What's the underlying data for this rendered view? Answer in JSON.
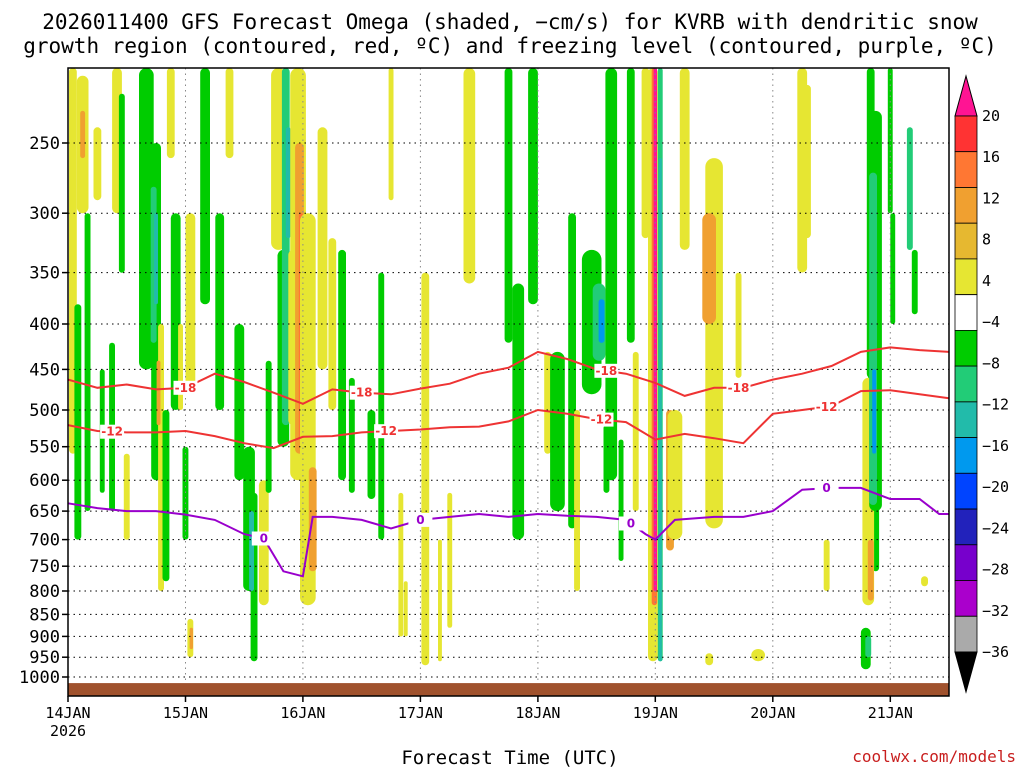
{
  "title_lines": [
    "2026011400 GFS Forecast Omega (shaded, −cm/s) for KVRB with dendritic snow",
    "growth region (contoured, red, ºC) and freezing level (contoured, purple, ºC)"
  ],
  "credit": "coolwx.com/models",
  "colors": {
    "sigma_red": "#ee3333",
    "freezing_purple": "#9900cc",
    "ground": "#a0522d"
  },
  "chart_data": {
    "type": "heatmap",
    "xlabel": "Forecast Time (UTC)",
    "x_ticks": [
      {
        "label": "14JAN",
        "sublabel": "2026",
        "hours": 0
      },
      {
        "label": "15JAN",
        "hours": 24
      },
      {
        "label": "16JAN",
        "hours": 48
      },
      {
        "label": "17JAN",
        "hours": 72
      },
      {
        "label": "18JAN",
        "hours": 96
      },
      {
        "label": "19JAN",
        "hours": 120
      },
      {
        "label": "20JAN",
        "hours": 144
      },
      {
        "label": "21JAN",
        "hours": 168
      }
    ],
    "xlim_hours": [
      0,
      180
    ],
    "y_ticks": [
      "250",
      "300",
      "350",
      "400",
      "450",
      "500",
      "550",
      "600",
      "650",
      "700",
      "750",
      "800",
      "850",
      "900",
      "950",
      "1000"
    ],
    "y_tick_values": [
      250,
      300,
      350,
      400,
      450,
      500,
      550,
      600,
      650,
      700,
      750,
      800,
      850,
      900,
      950,
      1000
    ],
    "ylim_hpa": [
      200,
      1025
    ],
    "y_scale": "log-pressure (reversed)",
    "grid": "dotted",
    "colorbar": {
      "labels": [
        "20",
        "16",
        "12",
        "8",
        "4",
        "−4",
        "−8",
        "−12",
        "−16",
        "−20",
        "−24",
        "−28",
        "−32",
        "−36"
      ],
      "colors": [
        "#ff1493",
        "#ff3333",
        "#ff7733",
        "#f0a030",
        "#e6b830",
        "#e6e632",
        "#ffffff",
        "#00cc00",
        "#22cc77",
        "#22bbaa",
        "#0099ee",
        "#0044ff",
        "#2222bb",
        "#7700cc",
        "#aa00cc",
        "#aaaaaa",
        "#000000"
      ]
    },
    "series": [
      {
        "name": "-18",
        "color": "#ee3333",
        "label_hours": [
          24,
          60,
          110,
          137
        ],
        "hours": [
          0,
          6,
          12,
          18,
          24,
          30,
          36,
          42,
          48,
          54,
          60,
          66,
          72,
          78,
          84,
          90,
          96,
          102,
          108,
          114,
          120,
          126,
          132,
          138,
          144,
          150,
          156,
          162,
          168,
          174,
          180
        ],
        "hpa": [
          462,
          472,
          468,
          474,
          472,
          455,
          465,
          478,
          492,
          474,
          478,
          480,
          473,
          467,
          455,
          448,
          430,
          438,
          450,
          455,
          466,
          482,
          472,
          472,
          462,
          455,
          446,
          430,
          425,
          428,
          430
        ]
      },
      {
        "name": "-12",
        "color": "#ee3333",
        "label_hours": [
          9,
          65,
          109,
          155
        ],
        "hours": [
          0,
          6,
          12,
          18,
          24,
          30,
          36,
          42,
          48,
          54,
          60,
          66,
          72,
          78,
          84,
          90,
          96,
          102,
          108,
          114,
          120,
          126,
          132,
          138,
          144,
          150,
          156,
          162,
          168,
          174,
          180
        ],
        "hpa": [
          520,
          528,
          530,
          530,
          528,
          535,
          545,
          552,
          536,
          535,
          530,
          528,
          526,
          523,
          522,
          515,
          500,
          505,
          512,
          516,
          540,
          532,
          538,
          545,
          505,
          500,
          495,
          476,
          475,
          480,
          485
        ]
      },
      {
        "name": "0",
        "color": "#9900cc",
        "label_hours": [
          40,
          72,
          115,
          155
        ],
        "hours": [
          0,
          6,
          12,
          18,
          24,
          30,
          36,
          40,
          44,
          48,
          50,
          54,
          60,
          66,
          72,
          78,
          84,
          90,
          96,
          102,
          108,
          114,
          118,
          120,
          124,
          132,
          138,
          144,
          150,
          156,
          162,
          168,
          174,
          178,
          180
        ],
        "hpa": [
          637,
          645,
          650,
          650,
          656,
          665,
          690,
          698,
          760,
          770,
          660,
          660,
          665,
          680,
          665,
          660,
          655,
          660,
          655,
          658,
          660,
          665,
          690,
          700,
          665,
          660,
          660,
          650,
          615,
          612,
          612,
          630,
          630,
          655,
          655
        ]
      }
    ]
  }
}
